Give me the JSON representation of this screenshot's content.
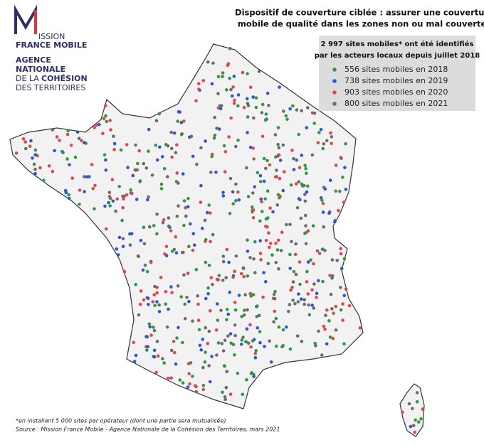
{
  "logo": {
    "mission": "ISSION",
    "france_mobile": "FRANCE MOBILE",
    "agency_1": "AGENCE",
    "agency_2": "NATIONALE",
    "agency_3a": "DE LA",
    "agency_3b": "COHÉSION",
    "agency_4": "DES TERRITOIRES"
  },
  "title": [
    "Dispositif de couverture ciblée : assurer une couverture",
    "mobile de qualité dans les zones non ou mal couvertes"
  ],
  "legend": {
    "heading": [
      "2 997 sites mobiles* ont été identifiés",
      "par les acteurs locaux depuis juillet 2018"
    ],
    "items": [
      {
        "label": "556 sites mobiles en 2018",
        "color": "#2e9a3e"
      },
      {
        "label": "738 sites mobiles en 2019",
        "color": "#2f55d4"
      },
      {
        "label": "903 sites mobiles en 2020",
        "color": "#e0474c"
      },
      {
        "label": "800 sites mobiles en 2021",
        "color": "#6b6b6b"
      }
    ]
  },
  "footnotes": [
    "*en installant 5 000 sites par opérateur (dont une partie sera mutualisée)",
    "Source : Mission France Mobile - Agence Nationale de la Cohésion des Territoires, mars 2021"
  ]
}
